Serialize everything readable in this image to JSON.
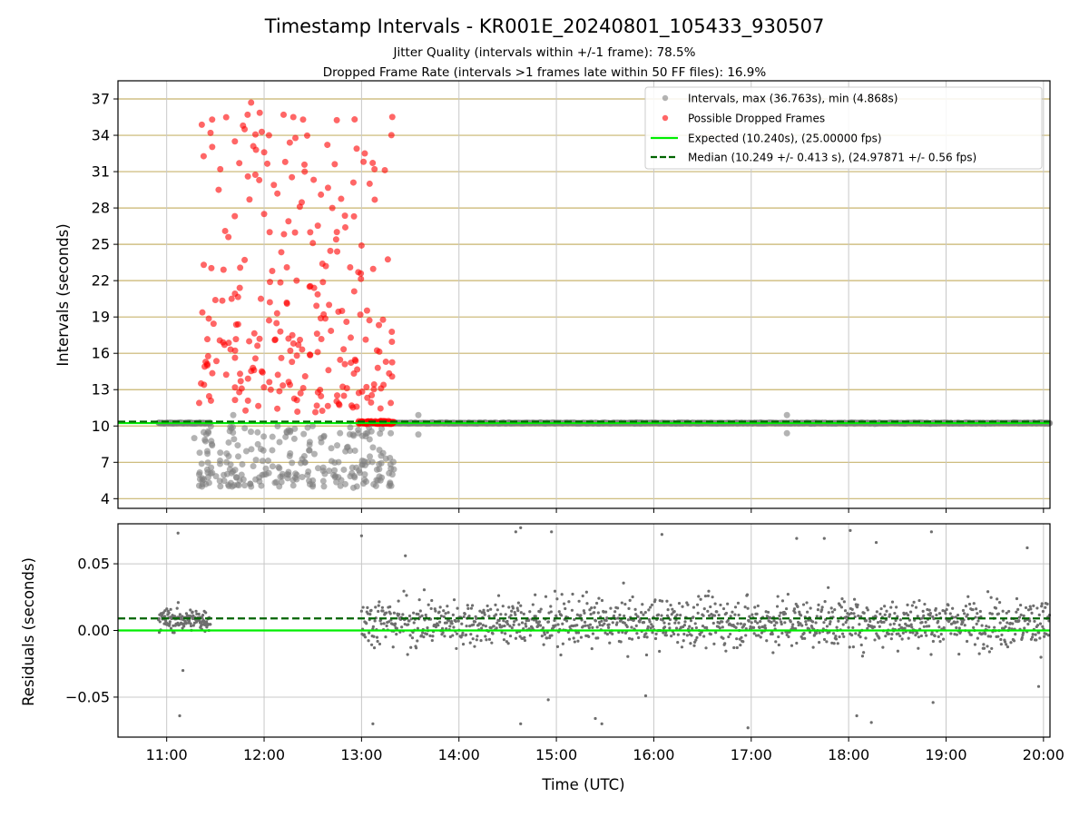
{
  "chart_data": {
    "type": "scatter",
    "title": "Timestamp Intervals - KR001E_20240801_105433_930507",
    "subtitle_lines": [
      "Jitter Quality (intervals within +/-1 frame): 78.5%",
      "Dropped Frame Rate (intervals >1 frames late within 50 FF files): 16.9%"
    ],
    "xlabel": "Time (UTC)",
    "x_ticks": [
      "11:00",
      "12:00",
      "13:00",
      "14:00",
      "15:00",
      "16:00",
      "17:00",
      "18:00",
      "19:00",
      "20:00"
    ],
    "xlim": [
      "10:30",
      "20:04"
    ],
    "colors": {
      "intervals": "#808080",
      "dropped": "#ff0000",
      "expected": "#00ee00",
      "median": "#006400",
      "top_grid": "#c8b46e",
      "grid": "#c8c8c8"
    },
    "panels": [
      {
        "name": "intervals",
        "ylabel": "Intervals (seconds)",
        "ylim": [
          3.2,
          38.5
        ],
        "y_ticks": [
          4,
          7,
          10,
          13,
          16,
          19,
          22,
          25,
          28,
          31,
          34,
          37
        ],
        "grid": "horizontal gold + vertical gray",
        "expected": 10.24,
        "median": 10.249,
        "legend_position": "upper right",
        "legend": [
          "Intervals, max (36.763s), min (4.868s)",
          "Possible Dropped Frames",
          "Expected (10.240s), (25.00000 fps)",
          "Median (10.249 +/- 0.413 s), (24.97871 +/- 0.56 fps)"
        ],
        "series": [
          {
            "name": "Intervals, max (36.763s), min (4.868s)",
            "note": "Gray points. From ~10:55 to ~11:27 a dense band at 10.24 s; from ~11:20 to ~13:20 points spread between ~4.9 and ~10 s; after 13:00 a continuous band at ~10.2-10.3 s through 20:04 with small outliers.",
            "band_ranges": [
              [
                "10:55",
                "11:27"
              ],
              [
                "13:00",
                "20:04"
              ]
            ],
            "band_value": 10.24,
            "sample_points": [
              [
                "11:17",
                9.0
              ],
              [
                "11:20",
                6.0
              ],
              [
                "11:22",
                5.5
              ],
              [
                "11:25",
                6.4
              ],
              [
                "11:28",
                8.4
              ],
              [
                "11:33",
                7.8
              ],
              [
                "11:40",
                6.1
              ],
              [
                "11:41",
                10.9
              ],
              [
                "11:45",
                5.5
              ],
              [
                "11:48",
                5.1
              ],
              [
                "11:52",
                5.0
              ],
              [
                "11:55",
                7.2
              ],
              [
                "11:58",
                8.1
              ],
              [
                "12:00",
                6.0
              ],
              [
                "12:05",
                8.0
              ],
              [
                "12:10",
                5.8
              ],
              [
                "12:15",
                6.2
              ],
              [
                "12:20",
                5.6
              ],
              [
                "12:25",
                7.0
              ],
              [
                "12:30",
                5.5
              ],
              [
                "12:35",
                9.0
              ],
              [
                "12:40",
                6.3
              ],
              [
                "12:45",
                8.4
              ],
              [
                "12:50",
                5.2
              ],
              [
                "12:55",
                4.9
              ],
              [
                "12:58",
                9.4
              ],
              [
                "13:02",
                6.0
              ],
              [
                "13:05",
                8.9
              ],
              [
                "13:10",
                5.5
              ],
              [
                "13:15",
                7.3
              ],
              [
                "13:18",
                9.4
              ],
              [
                "13:19",
                6.0
              ],
              [
                "13:35",
                10.9
              ],
              [
                "13:35",
                9.3
              ],
              [
                "17:22",
                10.9
              ],
              [
                "17:22",
                9.4
              ]
            ]
          },
          {
            "name": "Possible Dropped Frames",
            "note": "Red points from ~11:20 to ~13:20 spread between ~10.3 and ~36.8 s; from ~12:58 to ~13:20 a dense cluster at ~10.3 s.",
            "sample_points": [
              [
                "11:20",
                11.9
              ],
              [
                "11:23",
                13.4
              ],
              [
                "11:25",
                15.0
              ],
              [
                "11:27",
                34.2
              ],
              [
                "11:28",
                35.3
              ],
              [
                "11:30",
                20.4
              ],
              [
                "11:32",
                29.5
              ],
              [
                "11:33",
                31.2
              ],
              [
                "11:35",
                22.9
              ],
              [
                "11:36",
                26.1
              ],
              [
                "11:38",
                25.6
              ],
              [
                "11:40",
                20.5
              ],
              [
                "11:42",
                33.5
              ],
              [
                "11:44",
                18.4
              ],
              [
                "11:45",
                21.4
              ],
              [
                "11:47",
                34.8
              ],
              [
                "11:48",
                34.5
              ],
              [
                "11:50",
                30.6
              ],
              [
                "11:51",
                28.7
              ],
              [
                "11:52",
                36.7
              ],
              [
                "11:55",
                32.8
              ],
              [
                "11:57",
                30.3
              ],
              [
                "11:58",
                20.5
              ],
              [
                "12:00",
                27.5
              ],
              [
                "12:03",
                34.0
              ],
              [
                "12:05",
                22.8
              ],
              [
                "12:06",
                29.9
              ],
              [
                "12:08",
                19.3
              ],
              [
                "12:10",
                17.8
              ],
              [
                "12:12",
                35.7
              ],
              [
                "12:13",
                31.8
              ],
              [
                "12:14",
                23.1
              ],
              [
                "12:15",
                26.9
              ],
              [
                "12:18",
                35.5
              ],
              [
                "12:20",
                22.0
              ],
              [
                "12:22",
                28.1
              ],
              [
                "12:24",
                35.3
              ],
              [
                "12:25",
                31.0
              ],
              [
                "12:28",
                21.5
              ],
              [
                "12:30",
                25.1
              ],
              [
                "12:33",
                16.1
              ],
              [
                "12:35",
                29.1
              ],
              [
                "12:38",
                23.2
              ],
              [
                "12:40",
                20.0
              ],
              [
                "12:42",
                28.0
              ],
              [
                "12:45",
                24.4
              ],
              [
                "12:48",
                19.5
              ],
              [
                "12:50",
                26.4
              ],
              [
                "12:53",
                23.1
              ],
              [
                "12:55",
                30.1
              ],
              [
                "12:57",
                32.9
              ],
              [
                "12:58",
                22.7
              ],
              [
                "13:00",
                24.9
              ],
              [
                "13:02",
                32.5
              ],
              [
                "13:05",
                30.0
              ],
              [
                "13:08",
                31.2
              ],
              [
                "13:10",
                14.8
              ],
              [
                "13:12",
                13.1
              ],
              [
                "13:15",
                15.3
              ],
              [
                "13:18",
                11.9
              ]
            ],
            "cluster": {
              "range": [
                "12:58",
                "13:20"
              ],
              "value": 10.3
            }
          },
          {
            "name": "Expected (10.240s), (25.00000 fps)",
            "type": "hline",
            "value": 10.24,
            "style": "solid"
          },
          {
            "name": "Median (10.249 +/- 0.413 s), (24.97871 +/- 0.56 fps)",
            "type": "hline",
            "value": 10.249,
            "style": "dashed"
          }
        ]
      },
      {
        "name": "residuals",
        "ylabel": "Residuals (seconds)",
        "ylim": [
          -0.08,
          0.08
        ],
        "y_ticks": [
          0.05,
          0.0,
          -0.05
        ],
        "y_tick_labels": [
          "0.05",
          "0.00",
          "−0.05"
        ],
        "grid": "both, gray",
        "expected": 0.0,
        "median": 0.009,
        "note": "Small gray dots. Cluster ~10:55–11:27 centered ~0.008 within ±0.02; continuous scatter from ~13:00 to 20:04 mostly within ±0.03 with outliers to ±0.075.",
        "ranges": [
          [
            "10:55",
            "11:27"
          ],
          [
            "13:00",
            "20:04"
          ]
        ],
        "outliers": [
          [
            "11:07",
            0.073
          ],
          [
            "11:08",
            -0.064
          ],
          [
            "11:10",
            -0.03
          ],
          [
            "13:00",
            0.071
          ],
          [
            "13:07",
            -0.07
          ],
          [
            "13:27",
            0.056
          ],
          [
            "14:38",
            0.077
          ],
          [
            "14:35",
            0.074
          ],
          [
            "14:38",
            -0.07
          ],
          [
            "14:57",
            0.074
          ],
          [
            "14:55",
            -0.052
          ],
          [
            "15:24",
            -0.066
          ],
          [
            "15:28",
            -0.07
          ],
          [
            "15:55",
            -0.049
          ],
          [
            "16:05",
            0.072
          ],
          [
            "16:58",
            -0.073
          ],
          [
            "17:28",
            0.069
          ],
          [
            "17:45",
            0.069
          ],
          [
            "18:01",
            0.075
          ],
          [
            "18:05",
            -0.064
          ],
          [
            "18:14",
            -0.069
          ],
          [
            "18:17",
            0.066
          ],
          [
            "18:51",
            0.074
          ],
          [
            "18:52",
            -0.054
          ],
          [
            "19:50",
            0.062
          ],
          [
            "19:57",
            -0.042
          ]
        ]
      }
    ]
  }
}
